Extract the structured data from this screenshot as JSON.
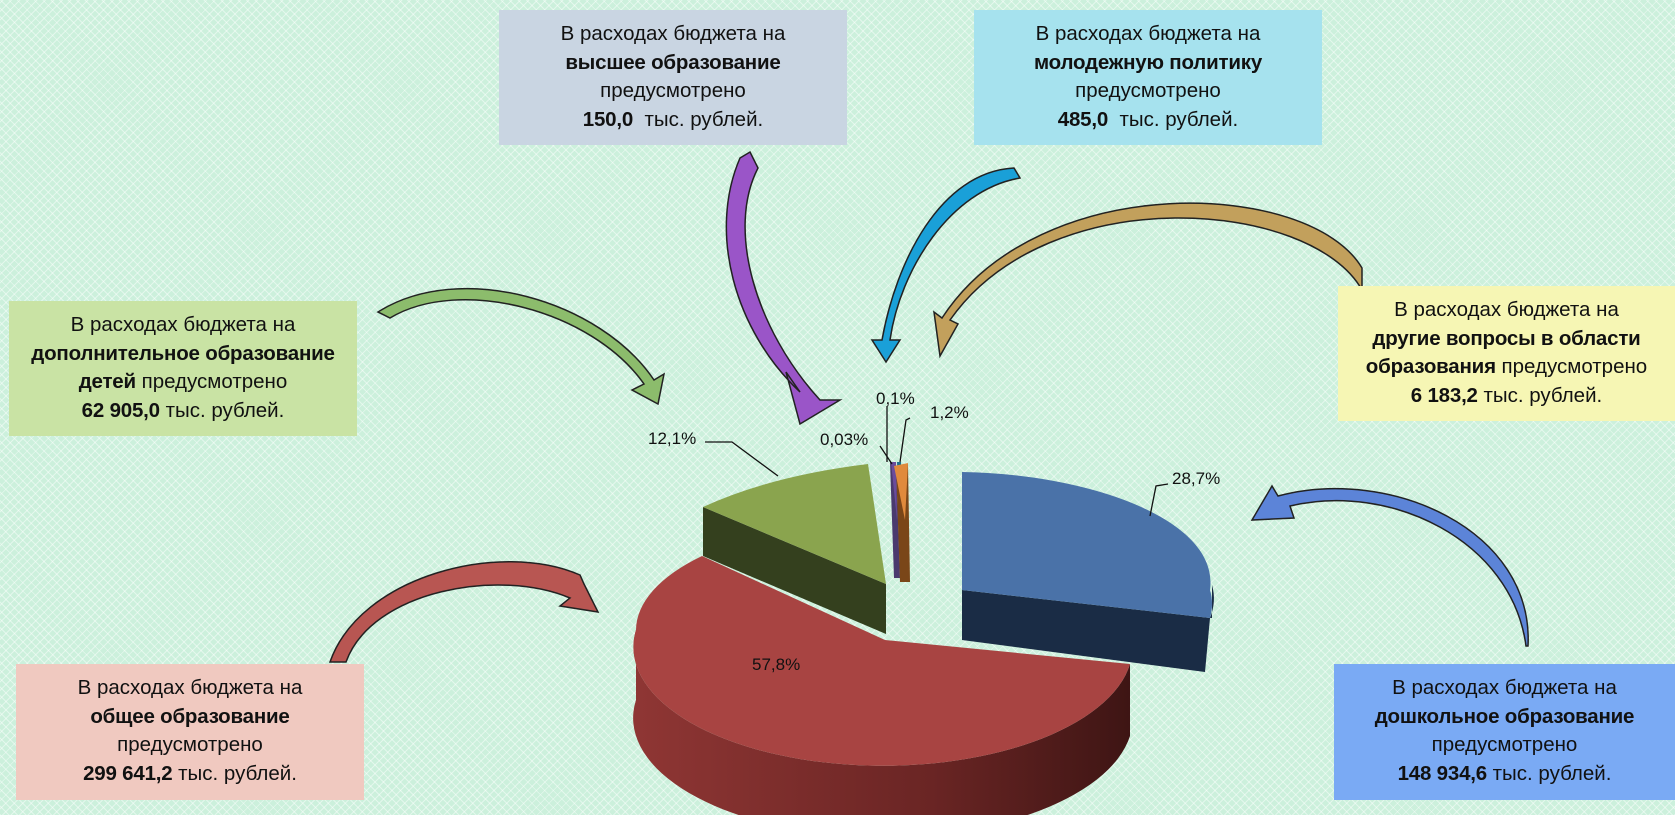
{
  "chart_data": {
    "type": "pie",
    "style": "3d-exploded",
    "slices": [
      {
        "name": "дошкольное образование",
        "percent": 28.7,
        "value": 148934.6,
        "label": "28,7%",
        "color": "#4a72a8"
      },
      {
        "name": "общее образование",
        "percent": 57.8,
        "value": 299641.2,
        "label": "57,8%",
        "color": "#a84442"
      },
      {
        "name": "дополнительное образование детей",
        "percent": 12.1,
        "value": 62905.0,
        "label": "12,1%",
        "color": "#8aa44e"
      },
      {
        "name": "высшее образование",
        "percent": 0.03,
        "value": 150.0,
        "label": "0,03%",
        "color": "#6a4c9c"
      },
      {
        "name": "молодежную политику",
        "percent": 0.1,
        "value": 485.0,
        "label": "0,1%",
        "color": "#2e9fc2"
      },
      {
        "name": "другие вопросы в области образования",
        "percent": 1.2,
        "value": 6183.2,
        "label": "1,2%",
        "color": "#e08a3c"
      }
    ]
  },
  "callouts": {
    "intro": "В расходах бюджета на",
    "provided": "предусмотрено",
    "unit": "тыс. рублей.",
    "higher": {
      "topic": "высшее образование",
      "amount": "150,0",
      "bg": "#c9d5e2"
    },
    "youth": {
      "topic": "молодежную политику",
      "amount": "485,0",
      "bg": "#a6e2ee"
    },
    "extra": {
      "topic_line1": "дополнительное образование",
      "topic_line2": "детей",
      "amount": "62 905,0",
      "bg": "#c9e3a4"
    },
    "other": {
      "topic_line1": "другие вопросы в области",
      "topic_line2": "образования",
      "amount": "6 183,2",
      "bg": "#f6f6b4"
    },
    "general": {
      "topic": "общее образование",
      "amount": "299 641,2",
      "bg": "#f0c9c0"
    },
    "preschool": {
      "topic": "дошкольное образование",
      "amount": "148 934,6",
      "bg": "#7aaaf4"
    }
  },
  "colors": {
    "arrow_higher": "#9a55c8",
    "arrow_youth": "#1aa0d8",
    "arrow_other": "#c2a05c",
    "arrow_extra": "#8cbc6c",
    "arrow_general": "#b85652",
    "arrow_preschool": "#5c84d8"
  }
}
